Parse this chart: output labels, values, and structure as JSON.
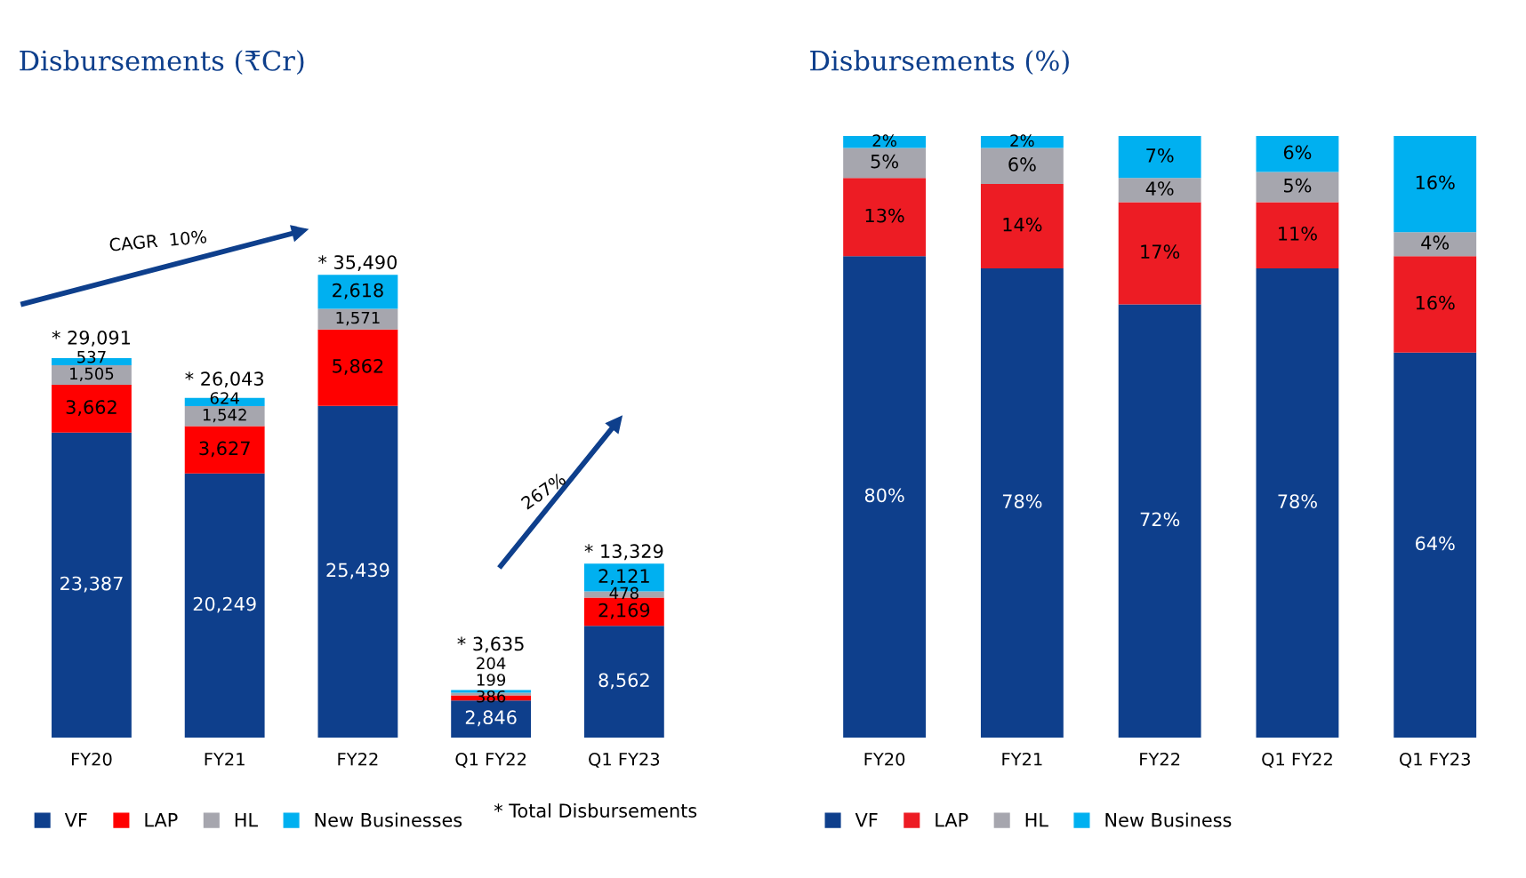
{
  "chart_data": [
    {
      "type": "bar",
      "stacked": true,
      "title": "Disbursements (₹Cr)",
      "categories": [
        "FY20",
        "FY21",
        "FY22",
        "Q1 FY22",
        "Q1 FY23"
      ],
      "legend": "bottom",
      "series": [
        {
          "name": "VF",
          "color": "#0e3f8c",
          "values": [
            23387,
            20249,
            25439,
            2846,
            8562
          ],
          "value_labels": [
            "23,387",
            "20,249",
            "25,439",
            "2,846",
            "8,562"
          ]
        },
        {
          "name": "LAP",
          "color": "#ff0000",
          "values": [
            3662,
            3627,
            5862,
            386,
            2169
          ],
          "value_labels": [
            "3,662",
            "3,627",
            "5,862",
            "386",
            "2,169"
          ]
        },
        {
          "name": "HL",
          "color": "#a6a6ae",
          "values": [
            1505,
            1542,
            1571,
            199,
            478
          ],
          "value_labels": [
            "1,505",
            "1,542",
            "1,571",
            "199",
            "478"
          ]
        },
        {
          "name": "New Businesses",
          "color": "#00b0f0",
          "values": [
            537,
            624,
            2618,
            204,
            2121
          ],
          "value_labels": [
            "537",
            "624",
            "2,618",
            "204",
            "2,121"
          ]
        }
      ],
      "totals": [
        "* 29,091",
        "* 26,043",
        "* 35,490",
        "* 3,635",
        "* 13,329"
      ],
      "annotations": [
        "CAGR  10%",
        "267%",
        "* Total Disbursements"
      ]
    },
    {
      "type": "bar",
      "stacked": true,
      "title": "Disbursements (%)",
      "categories": [
        "FY20",
        "FY21",
        "FY22",
        "Q1 FY22",
        "Q1 FY23"
      ],
      "legend": "bottom",
      "series": [
        {
          "name": "VF",
          "color": "#0e3f8c",
          "values": [
            80,
            78,
            72,
            78,
            64
          ],
          "value_labels": [
            "80%",
            "78%",
            "72%",
            "78%",
            "64%"
          ]
        },
        {
          "name": "LAP",
          "color": "#ed1c24",
          "values": [
            13,
            14,
            17,
            11,
            16
          ],
          "value_labels": [
            "13%",
            "14%",
            "17%",
            "11%",
            "16%"
          ]
        },
        {
          "name": "HL",
          "color": "#a6a6ae",
          "values": [
            5,
            6,
            4,
            5,
            4
          ],
          "value_labels": [
            "5%",
            "6%",
            "4%",
            "5%",
            "4%"
          ]
        },
        {
          "name": "New Business",
          "color": "#00b0f0",
          "values": [
            2,
            2,
            7,
            6,
            16
          ],
          "value_labels": [
            "2%",
            "2%",
            "7%",
            "6%",
            "16%"
          ]
        }
      ]
    }
  ]
}
